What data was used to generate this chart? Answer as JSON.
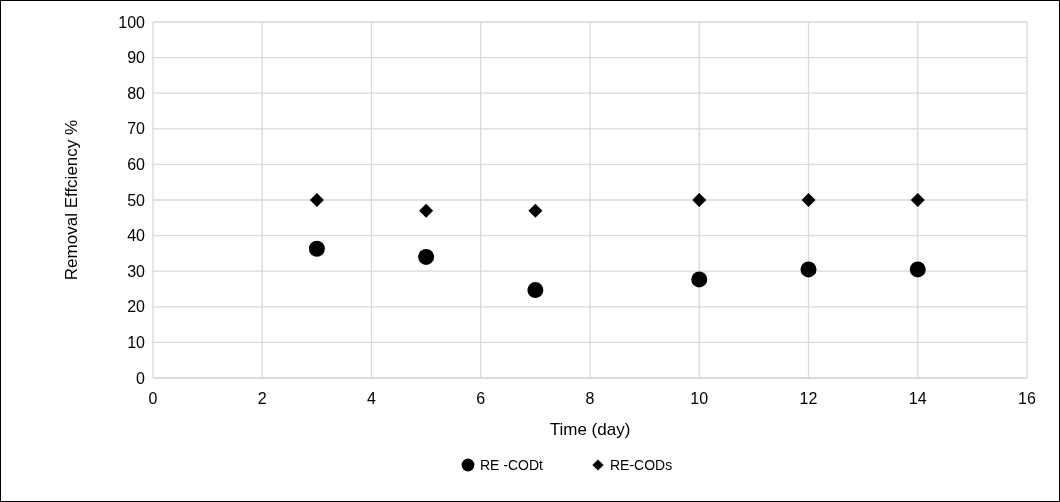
{
  "chart_data": {
    "type": "scatter",
    "xlabel": "Time (day)",
    "ylabel": "Removal Effciency %",
    "xlim": [
      0,
      16
    ],
    "xticks": [
      0,
      2,
      4,
      6,
      8,
      10,
      12,
      14,
      16
    ],
    "ylim": [
      0,
      100
    ],
    "yticks": [
      0,
      10,
      20,
      30,
      40,
      50,
      60,
      70,
      80,
      90,
      100
    ],
    "grid": true,
    "legend": "bottom",
    "series": [
      {
        "name": "RE -CODt",
        "color": "#000000",
        "marker": "circle",
        "x": [
          3,
          5,
          7,
          10,
          12,
          14
        ],
        "values": [
          36.3,
          34.0,
          24.7,
          27.7,
          30.5,
          30.5
        ]
      },
      {
        "name": "RE-CODs",
        "color": "#000000",
        "marker": "diamond",
        "x": [
          3,
          5,
          7,
          10,
          12,
          14
        ],
        "values": [
          50,
          47,
          47,
          50,
          50,
          50
        ]
      }
    ]
  }
}
